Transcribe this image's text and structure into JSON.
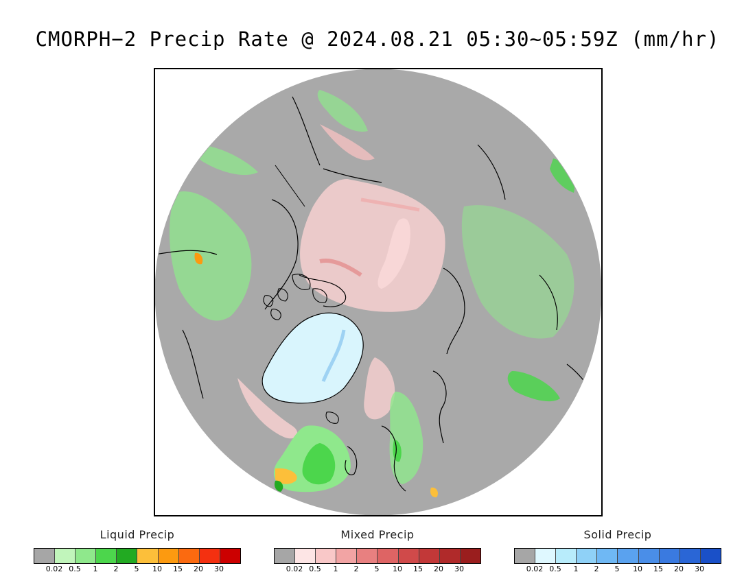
{
  "title": "CMORPH−2 Precip Rate @ 2024.08.21 05:30~05:59Z (mm/hr)",
  "map": {
    "projection": "north-polar-stereographic",
    "colors": {
      "no_precip": "#a9a9a9",
      "frame": "#000000",
      "coastline": "#000000"
    }
  },
  "legends": [
    {
      "id": "liquid",
      "title": "Liquid Precip",
      "colors": [
        "#a6a6a6",
        "#c1f5bb",
        "#8fe88c",
        "#4cd64c",
        "#22aa22",
        "#fcbf3a",
        "#fc9a10",
        "#fb6a10",
        "#f43010",
        "#cc0000"
      ],
      "ticks": [
        "0.02",
        "0.5",
        "1",
        "2",
        "5",
        "10",
        "15",
        "20",
        "30"
      ]
    },
    {
      "id": "mixed",
      "title": "Mixed Precip",
      "colors": [
        "#a6a6a6",
        "#fde5e5",
        "#f9c8c8",
        "#f2a4a4",
        "#e88080",
        "#de6464",
        "#d04a4a",
        "#c23838",
        "#b02a2a",
        "#9a1e1e"
      ],
      "ticks": [
        "0.02",
        "0.5",
        "1",
        "2",
        "5",
        "10",
        "15",
        "20",
        "30"
      ]
    },
    {
      "id": "solid",
      "title": "Solid Precip",
      "colors": [
        "#a6a6a6",
        "#dff8ff",
        "#b8ecfb",
        "#8fd1f7",
        "#6fb8f4",
        "#5aa2ef",
        "#4a8ee8",
        "#3a7ae0",
        "#2a66d6",
        "#1a50c8"
      ],
      "ticks": [
        "0.02",
        "0.5",
        "1",
        "2",
        "5",
        "10",
        "15",
        "20",
        "30"
      ]
    }
  ]
}
